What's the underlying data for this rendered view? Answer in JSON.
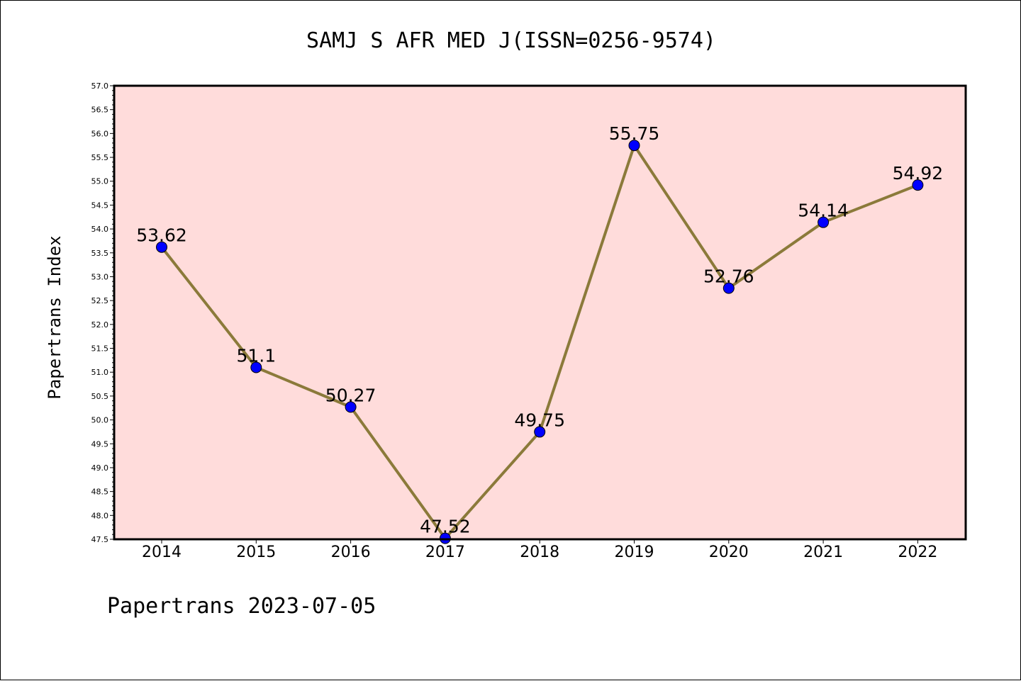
{
  "chart_data": {
    "type": "line",
    "title": "SAMJ S AFR MED J(ISSN=0256-9574)",
    "ylabel": "Papertrans Index",
    "xlabel": "",
    "footer": "Papertrans 2023-07-05",
    "categories": [
      "2014",
      "2015",
      "2016",
      "2017",
      "2018",
      "2019",
      "2020",
      "2021",
      "2022"
    ],
    "series": [
      {
        "values": [
          53.62,
          51.1,
          50.27,
          47.52,
          49.75,
          55.75,
          52.76,
          54.14,
          54.92
        ],
        "labels": [
          "53.62",
          "51.1",
          "50.27",
          "47.52",
          "49.75",
          "55.75",
          "52.76",
          "54.14",
          "54.92"
        ]
      }
    ],
    "ylim": [
      47.5,
      57.0
    ],
    "yticks": [
      "47.5",
      "48.0",
      "48.5",
      "49.0",
      "49.5",
      "50.0",
      "50.5",
      "51.0",
      "51.5",
      "52.0",
      "52.5",
      "53.0",
      "53.5",
      "54.0",
      "54.5",
      "55.0",
      "55.5",
      "56.0",
      "56.5",
      "57.0"
    ],
    "grid": false,
    "colors": {
      "plot_background": "#ffdcdb",
      "line": "#8b7a3a",
      "marker": "#0000ff"
    }
  }
}
